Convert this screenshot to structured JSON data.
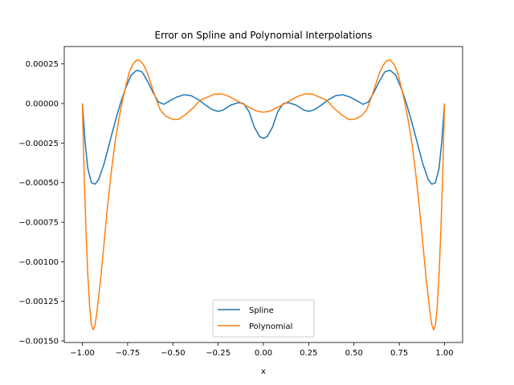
{
  "chart_data": {
    "type": "line",
    "title": "Error on Spline and Polynomial Interpolations",
    "xlabel": "x",
    "ylabel": "",
    "xlim": [
      -1.1,
      1.1
    ],
    "ylim": [
      -0.00151,
      0.00036
    ],
    "x_ticks": [
      -1.0,
      -0.75,
      -0.5,
      -0.25,
      0.0,
      0.25,
      0.5,
      0.75,
      1.0
    ],
    "x_tick_labels": [
      "−1.00",
      "−0.75",
      "−0.50",
      "−0.25",
      "0.00",
      "0.25",
      "0.50",
      "0.75",
      "1.00"
    ],
    "y_ticks": [
      0.00025,
      0.0,
      -0.00025,
      -0.0005,
      -0.00075,
      -0.001,
      -0.00125,
      -0.0015
    ],
    "y_tick_labels": [
      "0.00025",
      "0.00000",
      "−0.00025",
      "−0.00050",
      "−0.00075",
      "−0.00100",
      "−0.00125",
      "−0.00150"
    ],
    "grid": false,
    "legend": {
      "position": "lower-center"
    },
    "series": [
      {
        "name": "Spline",
        "color": "#1f77b4",
        "points": [
          [
            -1.0,
            0.0
          ],
          [
            -0.985,
            -0.00024
          ],
          [
            -0.97,
            -0.00041
          ],
          [
            -0.95,
            -0.0005
          ],
          [
            -0.93,
            -0.00051
          ],
          [
            -0.91,
            -0.00048
          ],
          [
            -0.88,
            -0.00038
          ],
          [
            -0.85,
            -0.00025
          ],
          [
            -0.82,
            -0.00012
          ],
          [
            -0.79,
            0.0
          ],
          [
            -0.76,
            0.0001
          ],
          [
            -0.73,
            0.00018
          ],
          [
            -0.7,
            0.00021
          ],
          [
            -0.67,
            0.0002
          ],
          [
            -0.64,
            0.00014
          ],
          [
            -0.61,
            7e-05
          ],
          [
            -0.58,
            1e-05
          ],
          [
            -0.55,
            -5e-06
          ],
          [
            -0.52,
            1.5e-05
          ],
          [
            -0.48,
            4e-05
          ],
          [
            -0.44,
            5.5e-05
          ],
          [
            -0.4,
            5e-05
          ],
          [
            -0.36,
            2.5e-05
          ],
          [
            -0.32,
            -1e-05
          ],
          [
            -0.28,
            -4e-05
          ],
          [
            -0.25,
            -5e-05
          ],
          [
            -0.22,
            -4e-05
          ],
          [
            -0.18,
            -1e-05
          ],
          [
            -0.14,
            5e-06
          ],
          [
            -0.11,
            0.0
          ],
          [
            -0.08,
            -5e-05
          ],
          [
            -0.05,
            -0.00015
          ],
          [
            -0.02,
            -0.00021
          ],
          [
            0.0,
            -0.00022
          ],
          [
            0.02,
            -0.00021
          ],
          [
            0.05,
            -0.00015
          ],
          [
            0.08,
            -5e-05
          ],
          [
            0.11,
            0.0
          ],
          [
            0.14,
            5e-06
          ],
          [
            0.18,
            -1e-05
          ],
          [
            0.22,
            -4e-05
          ],
          [
            0.25,
            -5e-05
          ],
          [
            0.28,
            -4e-05
          ],
          [
            0.32,
            -1e-05
          ],
          [
            0.36,
            2.5e-05
          ],
          [
            0.4,
            5e-05
          ],
          [
            0.44,
            5.5e-05
          ],
          [
            0.48,
            4e-05
          ],
          [
            0.52,
            1.5e-05
          ],
          [
            0.55,
            -5e-06
          ],
          [
            0.58,
            1e-05
          ],
          [
            0.61,
            7e-05
          ],
          [
            0.64,
            0.00014
          ],
          [
            0.67,
            0.0002
          ],
          [
            0.7,
            0.00021
          ],
          [
            0.73,
            0.00018
          ],
          [
            0.76,
            0.0001
          ],
          [
            0.79,
            0.0
          ],
          [
            0.82,
            -0.00012
          ],
          [
            0.85,
            -0.00025
          ],
          [
            0.88,
            -0.00038
          ],
          [
            0.91,
            -0.00048
          ],
          [
            0.93,
            -0.00051
          ],
          [
            0.95,
            -0.0005
          ],
          [
            0.97,
            -0.00041
          ],
          [
            0.985,
            -0.00024
          ],
          [
            1.0,
            0.0
          ]
        ]
      },
      {
        "name": "Polynomial",
        "color": "#ff7f0e",
        "points": [
          [
            -1.0,
            0.0
          ],
          [
            -0.99,
            -0.00045
          ],
          [
            -0.98,
            -0.0008
          ],
          [
            -0.97,
            -0.00108
          ],
          [
            -0.96,
            -0.00128
          ],
          [
            -0.95,
            -0.0014
          ],
          [
            -0.94,
            -0.00143
          ],
          [
            -0.93,
            -0.0014
          ],
          [
            -0.92,
            -0.00132
          ],
          [
            -0.9,
            -0.00112
          ],
          [
            -0.88,
            -0.00088
          ],
          [
            -0.86,
            -0.00064
          ],
          [
            -0.84,
            -0.00043
          ],
          [
            -0.82,
            -0.00025
          ],
          [
            -0.8,
            -0.00011
          ],
          [
            -0.78,
            1e-05
          ],
          [
            -0.76,
            0.00011
          ],
          [
            -0.74,
            0.0002
          ],
          [
            -0.72,
            0.00025
          ],
          [
            -0.7,
            0.000275
          ],
          [
            -0.68,
            0.00027
          ],
          [
            -0.66,
            0.00024
          ],
          [
            -0.64,
            0.00019
          ],
          [
            -0.62,
            0.00012
          ],
          [
            -0.6,
            5e-05
          ],
          [
            -0.57,
            -4e-05
          ],
          [
            -0.54,
            -8e-05
          ],
          [
            -0.5,
            -0.0001
          ],
          [
            -0.47,
            -0.0001
          ],
          [
            -0.43,
            -7e-05
          ],
          [
            -0.39,
            -3e-05
          ],
          [
            -0.35,
            2e-05
          ],
          [
            -0.31,
            4e-05
          ],
          [
            -0.27,
            6e-05
          ],
          [
            -0.23,
            6e-05
          ],
          [
            -0.19,
            4.5e-05
          ],
          [
            -0.15,
            2e-05
          ],
          [
            -0.11,
            -5e-06
          ],
          [
            -0.07,
            -3e-05
          ],
          [
            -0.03,
            -5e-05
          ],
          [
            0.0,
            -5.5e-05
          ],
          [
            0.03,
            -5e-05
          ],
          [
            0.07,
            -3e-05
          ],
          [
            0.11,
            -5e-06
          ],
          [
            0.15,
            2e-05
          ],
          [
            0.19,
            4.5e-05
          ],
          [
            0.23,
            6e-05
          ],
          [
            0.27,
            6e-05
          ],
          [
            0.31,
            4e-05
          ],
          [
            0.35,
            2e-05
          ],
          [
            0.39,
            -3e-05
          ],
          [
            0.43,
            -7e-05
          ],
          [
            0.47,
            -0.0001
          ],
          [
            0.5,
            -0.0001
          ],
          [
            0.54,
            -8e-05
          ],
          [
            0.57,
            -4e-05
          ],
          [
            0.6,
            5e-05
          ],
          [
            0.62,
            0.00012
          ],
          [
            0.64,
            0.00019
          ],
          [
            0.66,
            0.00024
          ],
          [
            0.68,
            0.00027
          ],
          [
            0.7,
            0.000275
          ],
          [
            0.72,
            0.00025
          ],
          [
            0.74,
            0.0002
          ],
          [
            0.76,
            0.00011
          ],
          [
            0.78,
            1e-05
          ],
          [
            0.8,
            -0.00011
          ],
          [
            0.82,
            -0.00025
          ],
          [
            0.84,
            -0.00043
          ],
          [
            0.86,
            -0.00064
          ],
          [
            0.88,
            -0.00088
          ],
          [
            0.9,
            -0.00112
          ],
          [
            0.92,
            -0.00132
          ],
          [
            0.93,
            -0.0014
          ],
          [
            0.94,
            -0.00143
          ],
          [
            0.95,
            -0.0014
          ],
          [
            0.96,
            -0.00128
          ],
          [
            0.97,
            -0.00108
          ],
          [
            0.98,
            -0.0008
          ],
          [
            0.99,
            -0.00045
          ],
          [
            1.0,
            0.0
          ]
        ]
      }
    ]
  }
}
